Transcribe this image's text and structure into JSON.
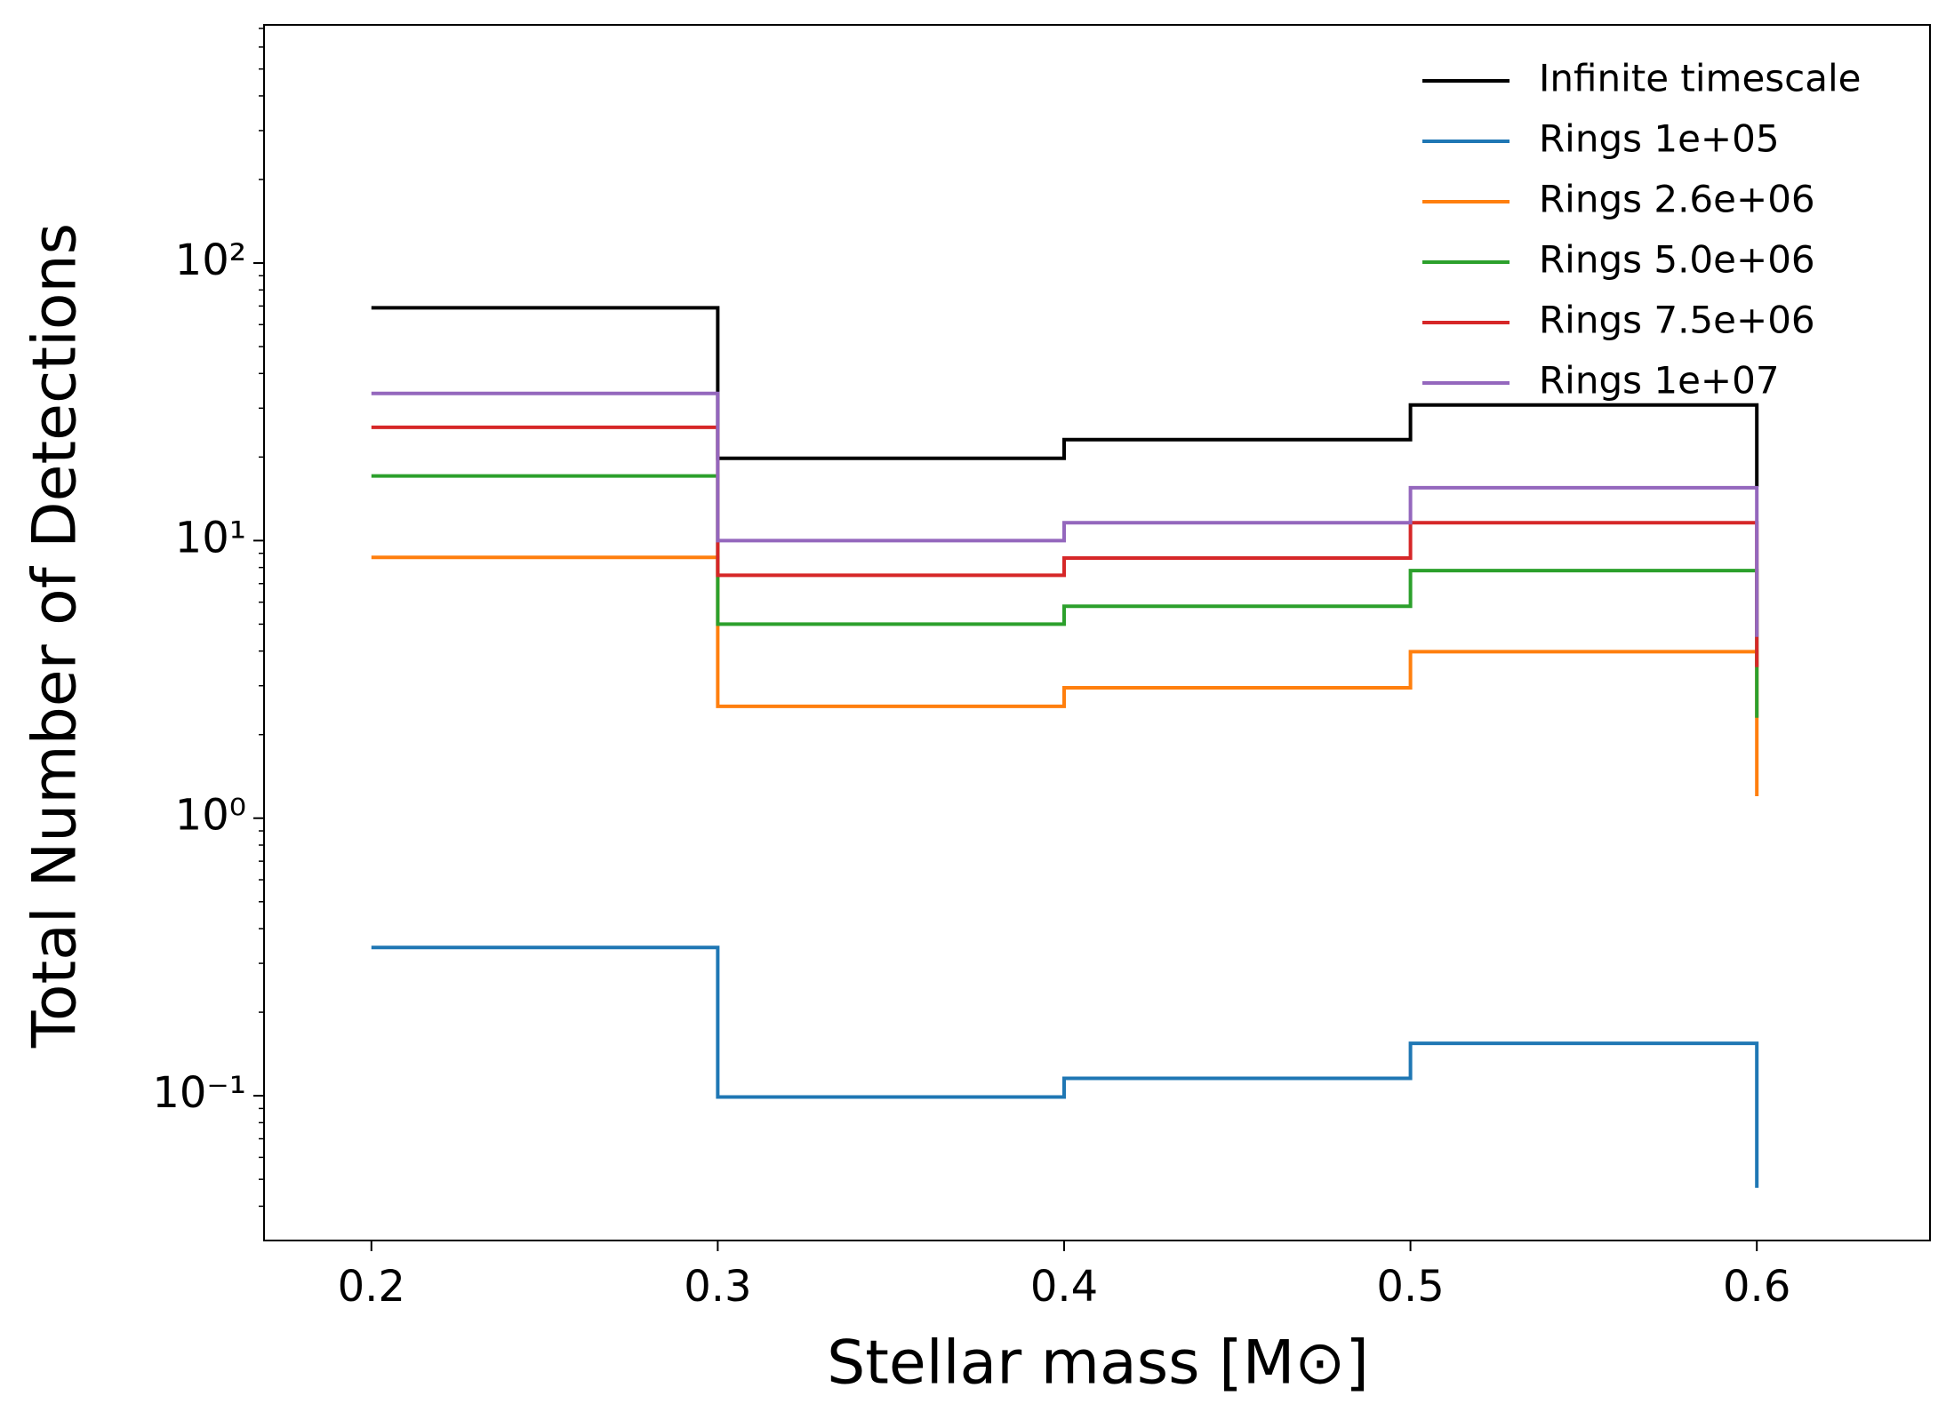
{
  "chart_data": {
    "type": "step",
    "xlabel": "Stellar mass [M⊙]",
    "ylabel": "Total Number of Detections",
    "x": [
      0.2,
      0.3,
      0.4,
      0.5,
      0.6
    ],
    "series": [
      {
        "name": "Infinite timescale",
        "color": "#000000",
        "values": [
          69,
          19.8,
          23.1,
          30.8,
          15.6
        ]
      },
      {
        "name": "Rings 1e+05",
        "color": "#1f77b4",
        "values": [
          0.342,
          0.099,
          0.1156,
          0.1545,
          0.0466
        ]
      },
      {
        "name": "Rings 2.6e+06",
        "color": "#ff7f0e",
        "values": [
          8.7,
          2.53,
          2.95,
          3.98,
          1.2
        ]
      },
      {
        "name": "Rings 5.0e+06",
        "color": "#2ca02c",
        "values": [
          17.1,
          5.0,
          5.8,
          7.8,
          2.3
        ]
      },
      {
        "name": "Rings 7.5e+06",
        "color": "#d62728",
        "values": [
          25.6,
          7.5,
          8.65,
          11.6,
          3.5
        ]
      },
      {
        "name": "Rings 1e+07",
        "color": "#9467bd",
        "values": [
          33.9,
          10,
          11.6,
          15.5,
          4.5
        ]
      }
    ],
    "xlim": [
      0.169,
      0.65
    ],
    "xticks": [
      0.2,
      0.3,
      0.4,
      0.5,
      0.6
    ],
    "ylim": [
      0.0301,
      721
    ],
    "ylog": true,
    "yticks": [
      {
        "value": 0.1,
        "label": "10⁻¹"
      },
      {
        "value": 1,
        "label": "10⁰"
      },
      {
        "value": 10,
        "label": "10¹"
      },
      {
        "value": 100,
        "label": "10²"
      }
    ],
    "yticks_minor": [
      0.04,
      0.05,
      0.06,
      0.07,
      0.08,
      0.09,
      0.2,
      0.3,
      0.4,
      0.5,
      0.6,
      0.7,
      0.8,
      0.9,
      2,
      3,
      4,
      5,
      6,
      7,
      8,
      9,
      20,
      30,
      40,
      50,
      60,
      70,
      80,
      90,
      200,
      300,
      400,
      500,
      600,
      700
    ],
    "legend": "upper right",
    "grid": false
  }
}
